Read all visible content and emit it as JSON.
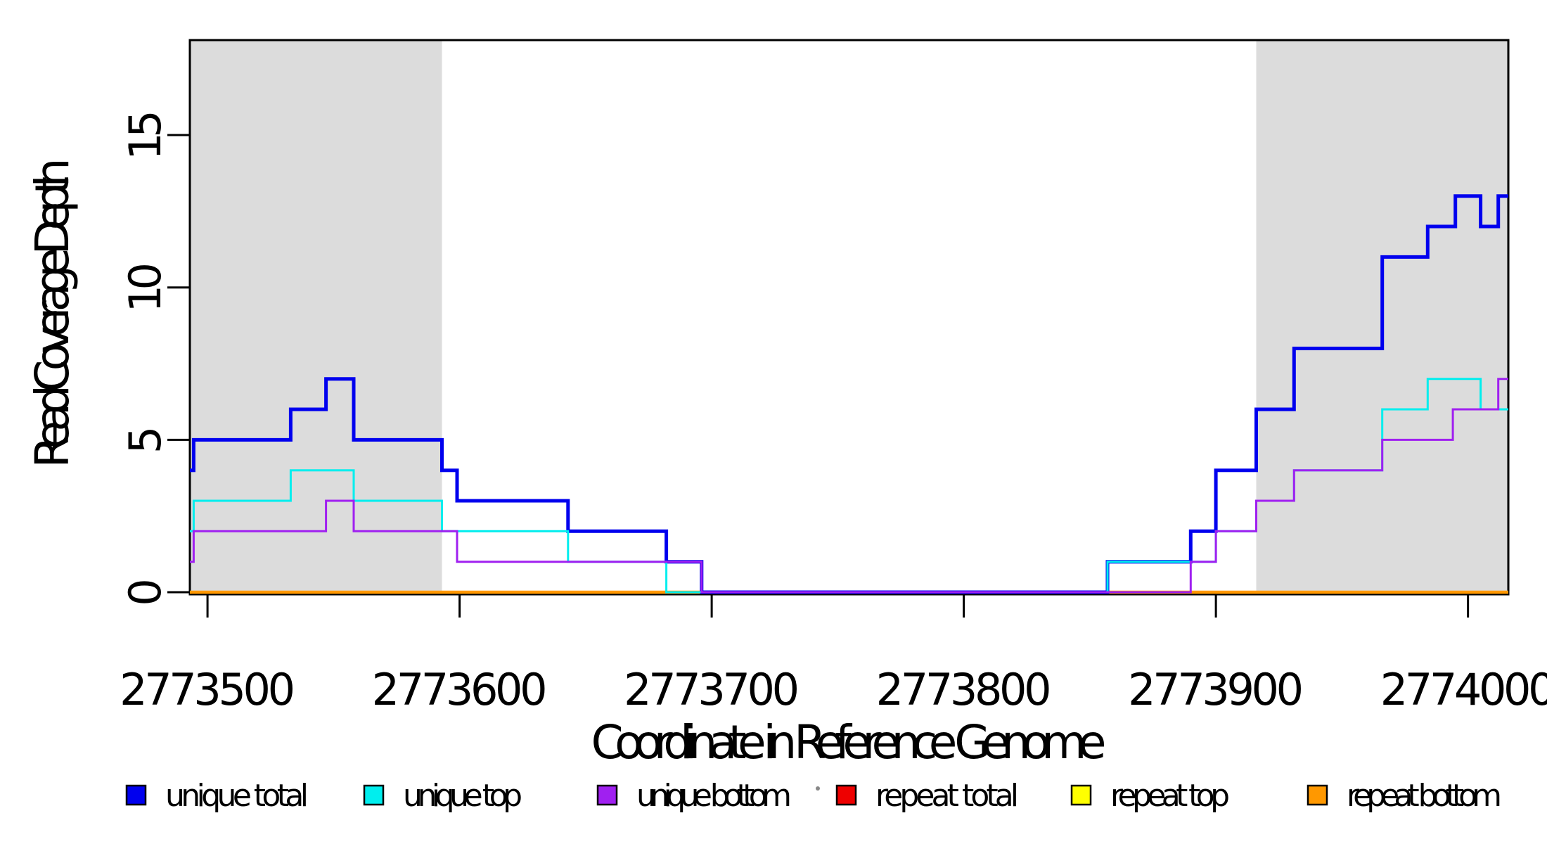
{
  "figure": {
    "background": "#FFFFFF"
  },
  "chart_data": {
    "type": "line",
    "subtype": "step-post",
    "title": "",
    "xlabel": "Coordinate in Reference Genome",
    "ylabel": "Read Coverage Depth",
    "x_range": [
      2773493,
      2774016
    ],
    "y_range": [
      0,
      18.2
    ],
    "grid": false,
    "x_ticks": [
      {
        "value": 2773500,
        "label": "2773500"
      },
      {
        "value": 2773600,
        "label": "2773600"
      },
      {
        "value": 2773700,
        "label": "2773700"
      },
      {
        "value": 2773800,
        "label": "2773800"
      },
      {
        "value": 2773900,
        "label": "2773900"
      },
      {
        "value": 2774000,
        "label": "2774000"
      }
    ],
    "y_ticks": [
      {
        "value": 0,
        "label": "0"
      },
      {
        "value": 5,
        "label": "5"
      },
      {
        "value": 10,
        "label": "10"
      },
      {
        "value": 15,
        "label": "15"
      }
    ],
    "shaded_regions": [
      {
        "start": 2773493,
        "end": 2773593,
        "color": "#DCDCDC"
      },
      {
        "start": 2773916,
        "end": 2774016,
        "color": "#DCDCDC"
      }
    ],
    "draw_order": [
      "repeat total",
      "repeat top",
      "repeat bottom",
      "unique total",
      "unique top",
      "unique bottom"
    ],
    "series": [
      {
        "name": "unique total",
        "color": "#0000EE",
        "line_width": 5,
        "points": [
          [
            2773493,
            4
          ],
          [
            2773494.5,
            5
          ],
          [
            2773533,
            6
          ],
          [
            2773547,
            7
          ],
          [
            2773558,
            5
          ],
          [
            2773593,
            4
          ],
          [
            2773599,
            3
          ],
          [
            2773643,
            2
          ],
          [
            2773682,
            1
          ],
          [
            2773696,
            0
          ],
          [
            2773857,
            1
          ],
          [
            2773890,
            2
          ],
          [
            2773900,
            4
          ],
          [
            2773916,
            6
          ],
          [
            2773931,
            8
          ],
          [
            2773966,
            11
          ],
          [
            2773984,
            12
          ],
          [
            2773995,
            13
          ],
          [
            2774005,
            12
          ],
          [
            2774012,
            13
          ],
          [
            2774016,
            13
          ]
        ]
      },
      {
        "name": "unique top",
        "color": "#00EEEE",
        "line_width": 3,
        "points": [
          [
            2773493,
            2
          ],
          [
            2773494.5,
            3
          ],
          [
            2773533,
            4
          ],
          [
            2773558,
            3
          ],
          [
            2773593,
            2
          ],
          [
            2773643,
            1
          ],
          [
            2773682,
            0
          ],
          [
            2773857,
            1
          ],
          [
            2773900,
            2
          ],
          [
            2773916,
            3
          ],
          [
            2773931,
            4
          ],
          [
            2773966,
            6
          ],
          [
            2773984,
            7
          ],
          [
            2774005,
            6
          ],
          [
            2774016,
            6
          ]
        ]
      },
      {
        "name": "unique bottom",
        "color": "#A020F0",
        "line_width": 3,
        "points": [
          [
            2773493,
            1
          ],
          [
            2773494.5,
            2
          ],
          [
            2773547,
            3
          ],
          [
            2773558,
            2
          ],
          [
            2773599,
            1
          ],
          [
            2773696,
            0
          ],
          [
            2773890,
            1
          ],
          [
            2773900,
            2
          ],
          [
            2773916,
            3
          ],
          [
            2773931,
            4
          ],
          [
            2773966,
            5
          ],
          [
            2773994,
            6
          ],
          [
            2774012,
            7
          ],
          [
            2774016,
            7
          ]
        ]
      },
      {
        "name": "repeat total",
        "color": "#EE0000",
        "line_width": 4,
        "points": [
          [
            2773493,
            0
          ],
          [
            2774016,
            0
          ]
        ]
      },
      {
        "name": "repeat top",
        "color": "#FFFF00",
        "line_width": 4,
        "points": [
          [
            2773493,
            0
          ],
          [
            2774016,
            0
          ]
        ]
      },
      {
        "name": "repeat bottom",
        "color": "#FF9800",
        "line_width": 4.5,
        "points": [
          [
            2773493,
            0
          ],
          [
            2774016,
            0
          ]
        ]
      }
    ],
    "legend": {
      "position": "bottom",
      "entries": [
        {
          "label": "unique total",
          "color": "#0000EE"
        },
        {
          "label": "unique top",
          "color": "#00EEEE"
        },
        {
          "label": "unique bottom",
          "color": "#A020F0"
        },
        {
          "label": "repeat total",
          "color": "#EE0000"
        },
        {
          "label": "repeat top",
          "color": "#FFFF00"
        },
        {
          "label": "repeat bottom",
          "color": "#FF9800"
        }
      ]
    },
    "artifacts": {
      "stray_dot": {
        "x": 1163,
        "y": 1121
      }
    }
  }
}
